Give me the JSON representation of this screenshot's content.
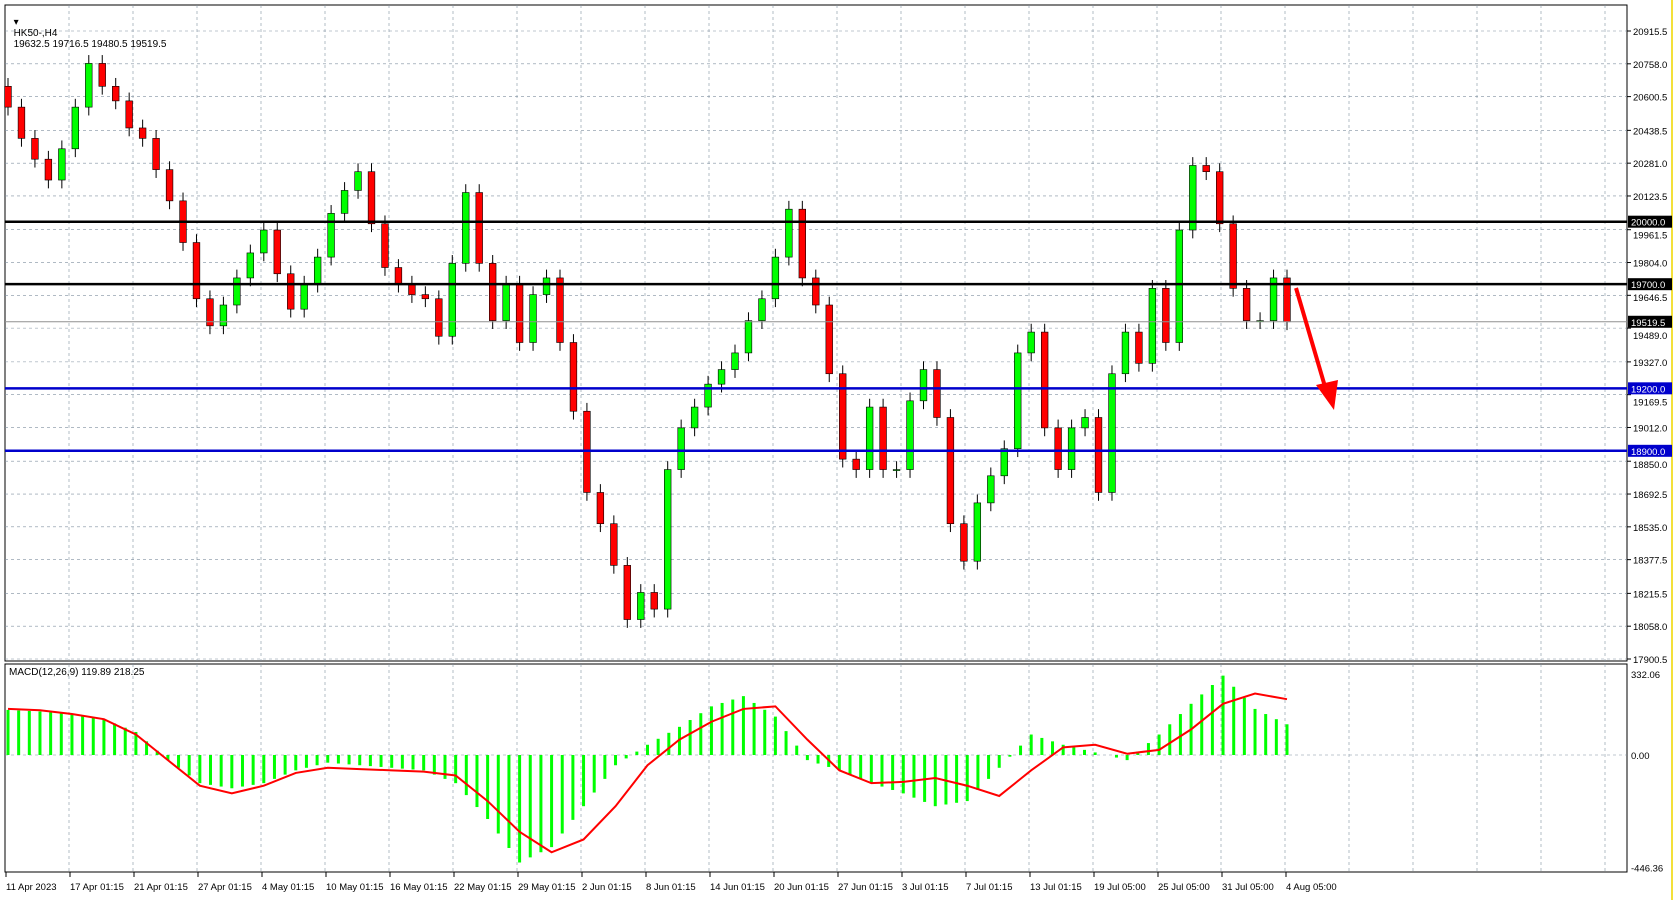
{
  "header": {
    "symbol": "HK50-,H4",
    "ohlc": "19632.5 19716.5 19480.5 19519.5"
  },
  "macd_header": {
    "label": "MACD(12,26,9) 119.89 218.25"
  },
  "colors": {
    "bull": "#00ff00",
    "bear": "#ff0000",
    "support": "#0000cc",
    "resistance": "#000000",
    "macd_hist": "#00ff00",
    "signal": "#ff0000",
    "arrow": "#ff0000",
    "grid": "#8090a0"
  },
  "chart_data": [
    {
      "type": "candlestick",
      "title": "HK50-,H4",
      "price_ticks": [
        "20915.5",
        "20758.0",
        "20600.5",
        "20438.5",
        "20281.0",
        "20123.5",
        "19961.5",
        "19804.0",
        "19646.5",
        "19489.0",
        "19327.0",
        "19169.5",
        "19012.0",
        "18850.0",
        "18692.5",
        "18535.0",
        "18377.5",
        "18215.5",
        "18058.0",
        "17900.5"
      ],
      "ylim": [
        17900.5,
        20915.5
      ],
      "x_ticks": [
        "11 Apr 2023",
        "17 Apr 01:15",
        "21 Apr 01:15",
        "27 Apr 01:15",
        "4 May 01:15",
        "10 May 01:15",
        "16 May 01:15",
        "22 May 01:15",
        "29 May 01:15",
        "2 Jun 01:15",
        "8 Jun 01:15",
        "14 Jun 01:15",
        "20 Jun 01:15",
        "27 Jun 01:15",
        "3 Jul 01:15",
        "7 Jul 01:15",
        "13 Jul 01:15",
        "19 Jul 05:00",
        "25 Jul 05:00",
        "31 Jul 05:00",
        "4 Aug 05:00"
      ],
      "closes": [
        20550,
        20400,
        20300,
        20200,
        20350,
        20550,
        20760,
        20650,
        20580,
        20450,
        20400,
        20250,
        20100,
        19900,
        19630,
        19500,
        19600,
        19730,
        19850,
        19960,
        19750,
        19580,
        19700,
        19830,
        20040,
        20150,
        20240,
        19990,
        19780,
        19700,
        19650,
        19630,
        19450,
        19800,
        20140,
        19800,
        19525,
        19700,
        19420,
        19650,
        19730,
        19420,
        19090,
        18700,
        18550,
        18350,
        18090,
        18220,
        18140,
        18810,
        19010,
        19110,
        19220,
        19290,
        19370,
        19525,
        19630,
        19830,
        20060,
        19730,
        19600,
        19270,
        18860,
        18810,
        19110,
        18810,
        18810,
        19140,
        19290,
        19060,
        18550,
        18370,
        18650,
        18780,
        18910,
        19370,
        19470,
        19010,
        18810,
        19010,
        19060,
        18700,
        19270,
        19470,
        19320,
        19680,
        19420,
        19960,
        20270,
        20240,
        19990,
        19680,
        19525,
        19525,
        19730,
        19519.5
      ],
      "first_open": 20650,
      "horizontal_levels": [
        {
          "label": "20000.0",
          "price": 20000,
          "kind": "resistance"
        },
        {
          "label": "19700.0",
          "price": 19700,
          "kind": "resistance"
        },
        {
          "label": "19519.5",
          "price": 19519.5,
          "kind": "current"
        },
        {
          "label": "19200.0",
          "price": 19200,
          "kind": "support"
        },
        {
          "label": "18900.0",
          "price": 18900,
          "kind": "support"
        }
      ],
      "annotation": "red arrow pointing down"
    },
    {
      "type": "bar+line",
      "title": "MACD(12,26,9)",
      "ticks": [
        "332.06",
        "0.00",
        "-446.36"
      ],
      "ylim": [
        -446.36,
        332.06
      ],
      "histogram": [
        176,
        170,
        160,
        140,
        90,
        -20,
        -110,
        -130,
        -110,
        -60,
        -30,
        -40,
        -50,
        -60,
        -110,
        -250,
        -420,
        -360,
        -200,
        -40,
        40,
        110,
        190,
        230,
        150,
        -20,
        -60,
        -110,
        -150,
        -200,
        -180,
        -50,
        80,
        40,
        10,
        -20,
        80,
        200,
        310,
        180,
        120
      ],
      "signal": [
        180,
        175,
        160,
        140,
        80,
        -20,
        -120,
        -150,
        -120,
        -70,
        -50,
        -55,
        -60,
        -65,
        -80,
        -180,
        -300,
        -380,
        -330,
        -200,
        -40,
        60,
        130,
        180,
        190,
        60,
        -60,
        -110,
        -105,
        -90,
        -120,
        -160,
        -60,
        30,
        40,
        5,
        20,
        100,
        200,
        240,
        218
      ]
    }
  ]
}
